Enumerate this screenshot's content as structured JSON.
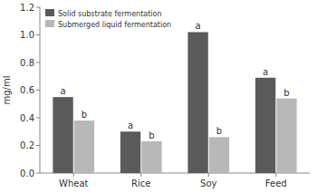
{
  "chart_data": {
    "type": "bar",
    "categories": [
      "Wheat",
      "Rice",
      "Soy",
      "Feed"
    ],
    "series": [
      {
        "name": "Solid substrate fermentation",
        "color": "#5a5a5a",
        "values": [
          0.55,
          0.3,
          1.02,
          0.69
        ],
        "annotations": [
          "a",
          "a",
          "a",
          "a"
        ]
      },
      {
        "name": "Submerged liquid fermentation",
        "color": "#b8b8b8",
        "values": [
          0.38,
          0.23,
          0.26,
          0.54
        ],
        "annotations": [
          "b",
          "b",
          "b",
          "b"
        ]
      }
    ],
    "y_label": "mg/ml",
    "ylim": [
      0.0,
      1.2
    ],
    "yticks": [
      {
        "value": 0.0,
        "label": "0.0"
      },
      0.2,
      0.4,
      0.6,
      0.8,
      {
        "value": 1.0,
        "label": "1.0"
      },
      1.2
    ],
    "legend": "upper left",
    "grid": false
  }
}
